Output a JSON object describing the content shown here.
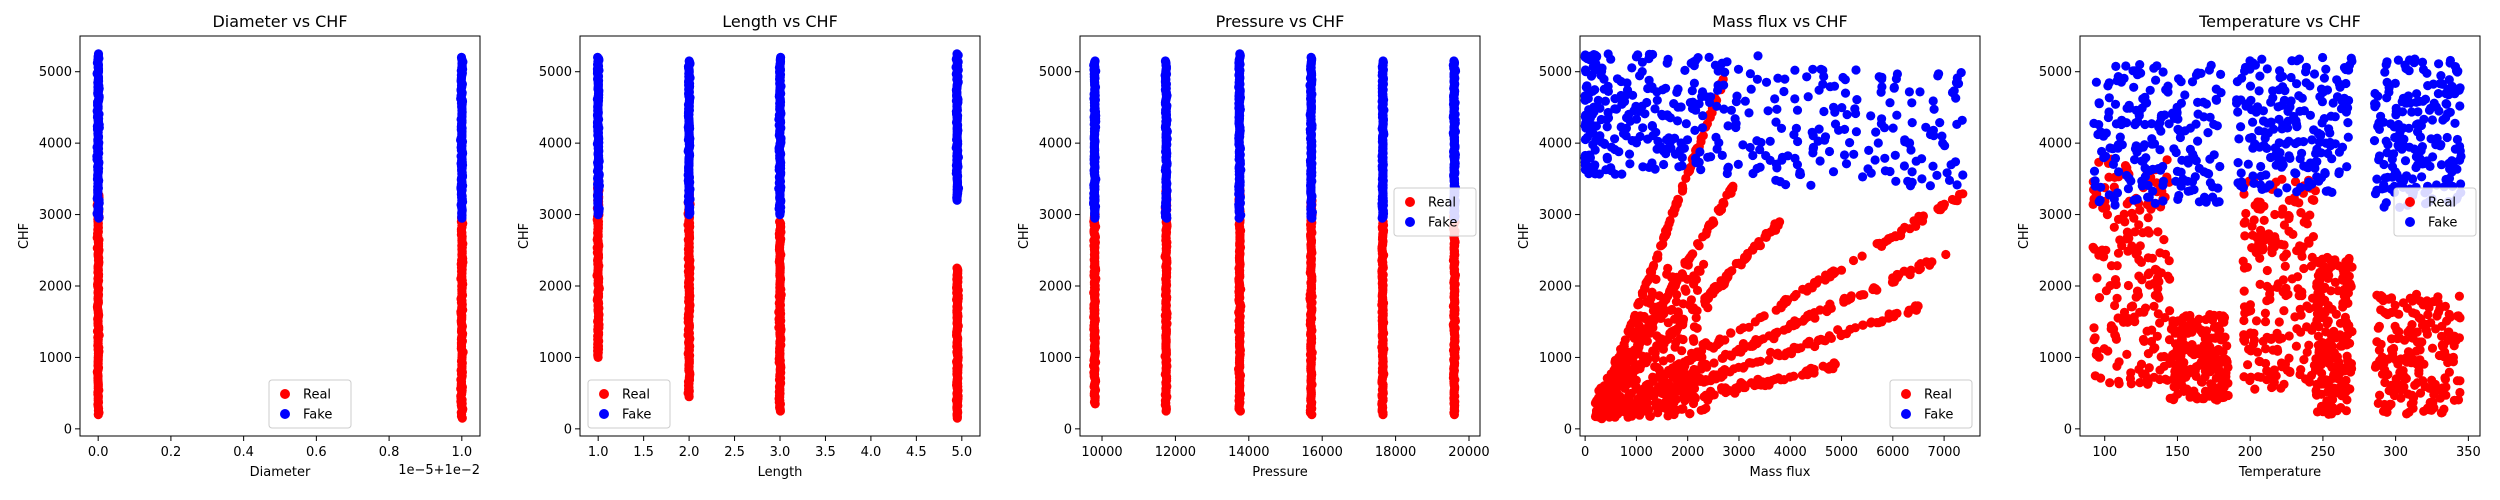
{
  "colors": {
    "real": "#ff0000",
    "fake": "#0000ff"
  },
  "legend_labels": [
    "Real",
    "Fake"
  ],
  "chart_data": [
    {
      "type": "scatter",
      "title": "Diameter vs CHF",
      "xlabel": "Diameter",
      "ylabel": "CHF",
      "xlim": [
        -0.05,
        1.05
      ],
      "ylim": [
        -100,
        5500
      ],
      "xticks": [
        0.0,
        0.2,
        0.4,
        0.6,
        0.8,
        1.0
      ],
      "xtick_labels": [
        "0.0",
        "0.2",
        "0.4",
        "0.6",
        "0.8",
        "1.0"
      ],
      "yticks": [
        0,
        1000,
        2000,
        3000,
        4000,
        5000
      ],
      "x_offset_label": "1e−5+1e−2",
      "legend": "lower center",
      "grid": false,
      "series": [
        {
          "name": "Real",
          "color": "#ff0000",
          "clusters": [
            {
              "x": 0.0,
              "y": [
                200,
                3300
              ]
            },
            {
              "x": 1.0,
              "y": [
                150,
                2950
              ]
            }
          ]
        },
        {
          "name": "Fake",
          "color": "#0000ff",
          "clusters": [
            {
              "x": 0.0,
              "y": [
                2950,
                5250
              ]
            },
            {
              "x": 1.0,
              "y": [
                2950,
                5200
              ]
            }
          ]
        }
      ]
    },
    {
      "type": "scatter",
      "title": "Length vs CHF",
      "xlabel": "Length",
      "ylabel": "CHF",
      "xlim": [
        0.8,
        5.2
      ],
      "ylim": [
        -100,
        5500
      ],
      "xticks": [
        1.0,
        1.5,
        2.0,
        2.5,
        3.0,
        3.5,
        4.0,
        4.5,
        5.0
      ],
      "xtick_labels": [
        "1.0",
        "1.5",
        "2.0",
        "2.5",
        "3.0",
        "3.5",
        "4.0",
        "4.5",
        "5.0"
      ],
      "yticks": [
        0,
        1000,
        2000,
        3000,
        4000,
        5000
      ],
      "x_offset_label": "",
      "legend": "lower left",
      "grid": false,
      "series": [
        {
          "name": "Real",
          "color": "#ff0000",
          "clusters": [
            {
              "x": 1.0,
              "y": [
                1000,
                3500
              ]
            },
            {
              "x": 2.0,
              "y": [
                450,
                3300
              ]
            },
            {
              "x": 3.0,
              "y": [
                250,
                2900
              ]
            },
            {
              "x": 4.95,
              "y": [
                150,
                2250
              ]
            }
          ]
        },
        {
          "name": "Fake",
          "color": "#0000ff",
          "clusters": [
            {
              "x": 1.0,
              "y": [
                3000,
                5200
              ]
            },
            {
              "x": 2.0,
              "y": [
                3000,
                5150
              ]
            },
            {
              "x": 3.0,
              "y": [
                3000,
                5200
              ]
            },
            {
              "x": 4.95,
              "y": [
                3200,
                5250
              ]
            }
          ]
        }
      ]
    },
    {
      "type": "scatter",
      "title": "Pressure vs CHF",
      "xlabel": "Pressure",
      "ylabel": "CHF",
      "xlim": [
        9400,
        20300
      ],
      "ylim": [
        -100,
        5500
      ],
      "xticks": [
        10000,
        12000,
        14000,
        16000,
        18000,
        20000
      ],
      "xtick_labels": [
        "10000",
        "12000",
        "14000",
        "16000",
        "18000",
        "20000"
      ],
      "yticks": [
        0,
        1000,
        2000,
        3000,
        4000,
        5000
      ],
      "x_offset_label": "",
      "legend": "center right",
      "grid": false,
      "series": [
        {
          "name": "Real",
          "color": "#ff0000",
          "clusters": [
            {
              "x": 9800,
              "y": [
                350,
                3000
              ]
            },
            {
              "x": 11750,
              "y": [
                250,
                3350
              ]
            },
            {
              "x": 13750,
              "y": [
                250,
                3450
              ]
            },
            {
              "x": 15700,
              "y": [
                200,
                3250
              ]
            },
            {
              "x": 17650,
              "y": [
                200,
                2900
              ]
            },
            {
              "x": 19600,
              "y": [
                200,
                3000
              ]
            }
          ]
        },
        {
          "name": "Fake",
          "color": "#0000ff",
          "clusters": [
            {
              "x": 9800,
              "y": [
                2950,
                5150
              ]
            },
            {
              "x": 11750,
              "y": [
                2950,
                5150
              ]
            },
            {
              "x": 13750,
              "y": [
                2950,
                5250
              ]
            },
            {
              "x": 15700,
              "y": [
                2950,
                5200
              ]
            },
            {
              "x": 17650,
              "y": [
                2950,
                5150
              ]
            },
            {
              "x": 19600,
              "y": [
                2950,
                5150
              ]
            }
          ]
        }
      ]
    },
    {
      "type": "scatter",
      "title": "Mass flux vs CHF",
      "xlabel": "Mass flux",
      "ylabel": "CHF",
      "xlim": [
        -100,
        7700
      ],
      "ylim": [
        -100,
        5500
      ],
      "xticks": [
        0,
        1000,
        2000,
        3000,
        4000,
        5000,
        6000,
        7000
      ],
      "xtick_labels": [
        "0",
        "1000",
        "2000",
        "3000",
        "4000",
        "5000",
        "6000",
        "7000"
      ],
      "yticks": [
        0,
        1000,
        2000,
        3000,
        4000,
        5000
      ],
      "x_offset_label": "",
      "legend": "lower right",
      "grid": false,
      "series": [
        {
          "name": "Real",
          "color": "#ff0000",
          "rays": [
            {
              "x0": 300,
              "x1": 2700,
              "y0": 300,
              "y1": 4900
            },
            {
              "x0": 300,
              "x1": 2900,
              "y0": 300,
              "y1": 3400
            },
            {
              "x0": 300,
              "x1": 3800,
              "y0": 300,
              "y1": 2900
            },
            {
              "x0": 300,
              "x1": 7400,
              "y0": 200,
              "y1": 3300
            },
            {
              "x0": 300,
              "x1": 7200,
              "y0": 200,
              "y1": 2500
            },
            {
              "x0": 300,
              "x1": 6500,
              "y0": 200,
              "y1": 1700
            },
            {
              "x0": 300,
              "x1": 5000,
              "y0": 150,
              "y1": 900
            }
          ]
        },
        {
          "name": "Fake",
          "color": "#0000ff",
          "box": {
            "x": [
              0,
              7400
            ],
            "y": [
              3000,
              5250
            ]
          }
        }
      ]
    },
    {
      "type": "scatter",
      "title": "Temperature vs CHF",
      "xlabel": "Temperature",
      "ylabel": "CHF",
      "xlim": [
        83,
        358
      ],
      "ylim": [
        -100,
        5500
      ],
      "xticks": [
        100,
        150,
        200,
        250,
        300,
        350
      ],
      "xtick_labels": [
        "100",
        "150",
        "200",
        "250",
        "300",
        "350"
      ],
      "yticks": [
        0,
        1000,
        2000,
        3000,
        4000,
        5000
      ],
      "x_offset_label": "",
      "legend": "center right",
      "grid": false,
      "series": [
        {
          "name": "Real",
          "color": "#ff0000",
          "regions": [
            {
              "x": [
                92,
                145
              ],
              "y": [
                600,
                3800
              ]
            },
            {
              "x": [
                145,
                185
              ],
              "y": [
                400,
                1600
              ]
            },
            {
              "x": [
                195,
                245
              ],
              "y": [
                500,
                3500
              ]
            },
            {
              "x": [
                245,
                270
              ],
              "y": [
                200,
                2400
              ]
            },
            {
              "x": [
                285,
                345
              ],
              "y": [
                200,
                1900
              ]
            }
          ]
        },
        {
          "name": "Fake",
          "color": "#0000ff",
          "regions": [
            {
              "x": [
                92,
                180
              ],
              "y": [
                3100,
                5100
              ]
            },
            {
              "x": [
                190,
                270
              ],
              "y": [
                3300,
                5200
              ]
            },
            {
              "x": [
                285,
                345
              ],
              "y": [
                3100,
                5200
              ]
            }
          ]
        }
      ]
    }
  ]
}
